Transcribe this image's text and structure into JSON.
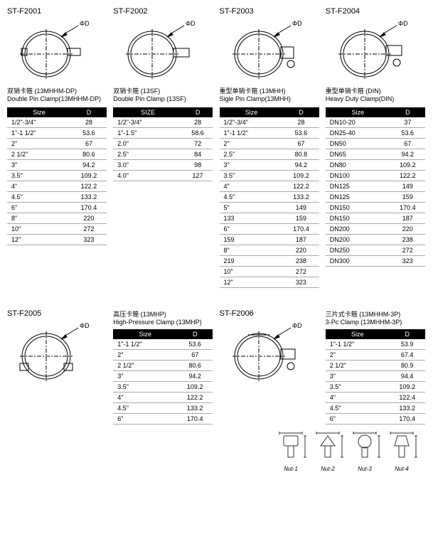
{
  "header_cols": [
    "Size",
    "D"
  ],
  "items": [
    {
      "code": "ST-F2001",
      "desc_cn": "双销卡箍 (13MHHM-DP)",
      "desc_en": "Double Pin Clamp(13MHHM-DP)",
      "rows": [
        [
          "1/2\"-3/4\"",
          "28"
        ],
        [
          "1\"-1 1/2\"",
          "53.6"
        ],
        [
          "2\"",
          "67"
        ],
        [
          "2 1/2\"",
          "80.6"
        ],
        [
          "3\"",
          "94.2"
        ],
        [
          "3.5\"",
          "109.2"
        ],
        [
          "4\"",
          "122.2"
        ],
        [
          "4.5\"",
          "133.2"
        ],
        [
          "6\"",
          "170.4"
        ],
        [
          "8\"",
          "220"
        ],
        [
          "10\"",
          "272"
        ],
        [
          "12\"",
          "323"
        ]
      ]
    },
    {
      "code": "ST-F2002",
      "header_cols": [
        "SIZE",
        "D"
      ],
      "desc_cn": "双销卡箍 (13SF)",
      "desc_en": "Double Pin Clamp (13SF)",
      "rows": [
        [
          "1/2\"-3/4\"",
          "28"
        ],
        [
          "1\"-1.5\"",
          "58.6"
        ],
        [
          "2.0\"",
          "72"
        ],
        [
          "2.5\"",
          "84"
        ],
        [
          "3.0\"",
          "98"
        ],
        [
          "4.0\"",
          "127"
        ]
      ]
    },
    {
      "code": "ST-F2003",
      "desc_cn": "重型单销卡箍 (13MHH)",
      "desc_en": "Sigle Pin Clamp(13MHH)",
      "rows": [
        [
          "1/2\"-3/4\"",
          "28"
        ],
        [
          "1\"-1 1/2\"",
          "53.6"
        ],
        [
          "2\"",
          "67"
        ],
        [
          "2.5\"",
          "80.8"
        ],
        [
          "3\"",
          "94.2"
        ],
        [
          "3.5\"",
          "109.2"
        ],
        [
          "4\"",
          "122.2"
        ],
        [
          "4.5\"",
          "133.2"
        ],
        [
          "5\"",
          "149"
        ],
        [
          "133",
          "159"
        ],
        [
          "6\"",
          "170.4"
        ],
        [
          "159",
          "187"
        ],
        [
          "8\"",
          "220"
        ],
        [
          "219",
          "238"
        ],
        [
          "10\"",
          "272"
        ],
        [
          "12\"",
          "323"
        ]
      ]
    },
    {
      "code": "ST-F2004",
      "desc_cn": "重型单销卡箍 (DIN)",
      "desc_en": "Heavy Duty Clamp(DIN)",
      "rows": [
        [
          "DN10-20",
          "37"
        ],
        [
          "DN25-40",
          "53.6"
        ],
        [
          "DN50",
          "67"
        ],
        [
          "DN65",
          "94.2"
        ],
        [
          "DN80",
          "109.2"
        ],
        [
          "DN100",
          "122.2"
        ],
        [
          "DN125",
          "149"
        ],
        [
          "DN125",
          "159"
        ],
        [
          "DN150",
          "170.4"
        ],
        [
          "DN150",
          "187"
        ],
        [
          "DN200",
          "220"
        ],
        [
          "DN200",
          "238"
        ],
        [
          "DN250",
          "272"
        ],
        [
          "DN300",
          "323"
        ]
      ]
    },
    {
      "code": "ST-F2005",
      "desc_cn": "高压卡箍 (13MHP)",
      "desc_en": "High-Pressure Clamp (13MHP)",
      "rows": [
        [
          "1\"-1 1/2\"",
          "53.6"
        ],
        [
          "2\"",
          "67"
        ],
        [
          "2 1/2\"",
          "80.6"
        ],
        [
          "3\"",
          "94.2"
        ],
        [
          "3.5\"",
          "109.2"
        ],
        [
          "4\"",
          "122.2"
        ],
        [
          "4.5\"",
          "133.2"
        ],
        [
          "6\"",
          "170.4"
        ]
      ]
    },
    {
      "code": "ST-F2006",
      "desc_cn": "三片式卡箍 (13MHHM-3P)",
      "desc_en": "3-Pc Clamp (13MHHM-3P)",
      "rows": [
        [
          "1\"-1 1/2\"",
          "53.9"
        ],
        [
          "2\"",
          "67.4"
        ],
        [
          "2 1/2\"",
          "80.9"
        ],
        [
          "3\"",
          "94.4"
        ],
        [
          "3.5\"",
          "109.2"
        ],
        [
          "4\"",
          "122.4"
        ],
        [
          "4.5\"",
          "133.2"
        ],
        [
          "6\"",
          "170.4"
        ]
      ]
    }
  ],
  "nuts": [
    "Nut-1",
    "Nut-2",
    "Nut-3",
    "Nut-4"
  ],
  "phi_d": "ΦD"
}
